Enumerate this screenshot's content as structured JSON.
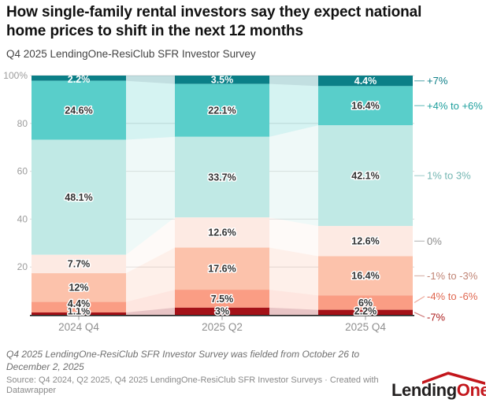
{
  "chart_data": {
    "type": "bar",
    "subtype": "stacked-column-100",
    "title": "How single-family rental investors say they expect national\nhome prices to shift in the next 12 months",
    "subtitle": "Q4 2025 LendingOne-ResiClub SFR Investor Survey",
    "categories": [
      "2024 Q4",
      "2025 Q2",
      "2025 Q4"
    ],
    "series": [
      {
        "name": "+7%",
        "values": [
          2.2,
          3.5,
          4.4
        ],
        "value_labels": [
          "2.2%",
          "3.5%",
          "4.4%"
        ],
        "color": "#0b7f87",
        "legend_color": "#0d7f88",
        "label_style": "white"
      },
      {
        "name": "+4% to +6%",
        "values": [
          24.6,
          22.1,
          16.4
        ],
        "value_labels": [
          "24.6%",
          "22.1%",
          "16.4%"
        ],
        "color": "#59ceca",
        "legend_color": "#1d9f9d",
        "label_style": "dark"
      },
      {
        "name": "1% to 3%",
        "values": [
          48.1,
          33.7,
          42.1
        ],
        "value_labels": [
          "48.1%",
          "33.7%",
          "42.1%"
        ],
        "color": "#c0e9e5",
        "legend_color": "#74b6b2",
        "label_style": "dark"
      },
      {
        "name": "0%",
        "values": [
          7.7,
          12.6,
          12.6
        ],
        "value_labels": [
          "7.7%",
          "12.6%",
          "12.6%"
        ],
        "color": "#fdeae3",
        "legend_color": "#8c8c8c",
        "label_style": "dark"
      },
      {
        "name": "-1% to -3%",
        "values": [
          12,
          17.6,
          16.4
        ],
        "value_labels": [
          "12%",
          "17.6%",
          "16.4%"
        ],
        "color": "#fcc2ab",
        "legend_color": "#c08475",
        "label_style": "dark"
      },
      {
        "name": "-4% to -6%",
        "values": [
          4.4,
          7.5,
          6
        ],
        "value_labels": [
          "4.4%",
          "7.5%",
          "6%"
        ],
        "color": "#fa9d84",
        "legend_color": "#e06750",
        "label_style": "dark"
      },
      {
        "name": "-7%",
        "values": [
          1.1,
          3,
          2.2
        ],
        "value_labels": [
          "1.1%",
          "3%",
          "2.2%"
        ],
        "color": "#a41218",
        "legend_color": "#ab1a1a",
        "label_style": "dark"
      }
    ],
    "y_axis": {
      "range": [
        0,
        100
      ],
      "grid": true,
      "ticks": [
        {
          "label": "100%",
          "value": 100
        },
        {
          "label": "80",
          "value": 80
        },
        {
          "label": "60",
          "value": 60
        },
        {
          "label": "40",
          "value": 40
        },
        {
          "label": "20",
          "value": 20
        }
      ]
    },
    "legend_position": "right"
  },
  "footer": {
    "note": "Q4 2025 LendingOne-ResiClub SFR Investor Survey was fielded from October 26 to\nDecember 2, 2025",
    "source": "Source: Q4 2024, Q2 2025, Q4 2025 LendingOne-ResiClub SFR Investor Surveys · Created with\nDatawrapper",
    "logo": {
      "part_black": "Lending",
      "part_red": "One",
      "red": "#c3161c"
    }
  }
}
